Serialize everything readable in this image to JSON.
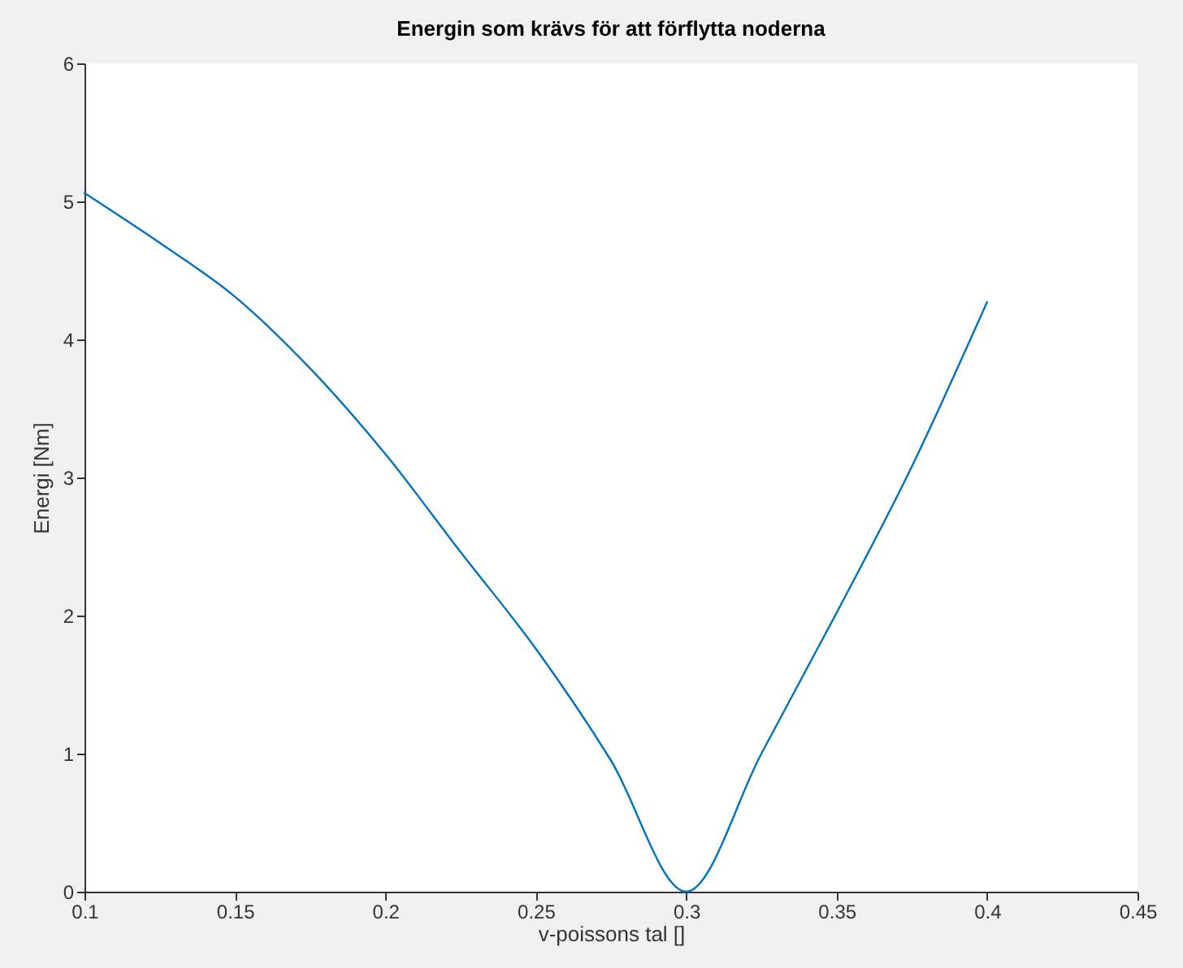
{
  "chart_data": {
    "type": "line",
    "title": "Energin som krävs för att förflytta noderna",
    "xlabel": "v-poissons tal []",
    "ylabel": "Energi [Nm]",
    "x": [
      0.1,
      0.125,
      0.15,
      0.175,
      0.2,
      0.225,
      0.25,
      0.275,
      0.3,
      0.325,
      0.35,
      0.375,
      0.4
    ],
    "series": [
      {
        "color": "#0072bd",
        "values": [
          5.06,
          4.7,
          4.31,
          3.79,
          3.17,
          2.46,
          1.76,
          0.95,
          0,
          1.0,
          2.02,
          3.08,
          4.27
        ]
      }
    ],
    "xlim": [
      0.1,
      0.45
    ],
    "xticks": [
      0.1,
      0.15,
      0.2,
      0.25,
      0.3,
      0.35,
      0.4,
      0.45
    ],
    "ylim": [
      0,
      6
    ],
    "yticks": [
      0,
      1,
      2,
      3,
      4,
      5,
      6
    ],
    "grid": false,
    "marker": "none",
    "line_style": "solid"
  }
}
